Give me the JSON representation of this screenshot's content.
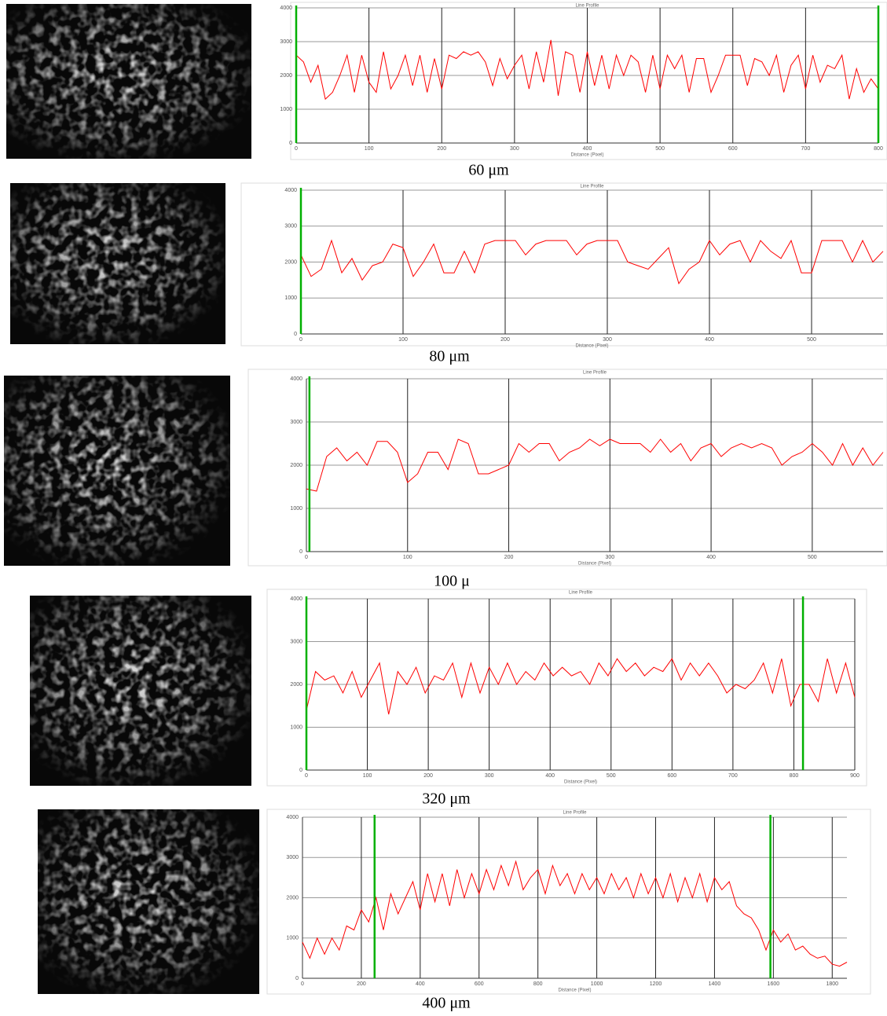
{
  "chart_data": [
    {
      "type": "line",
      "title": "Line Profile",
      "x_label": "Distance (Pixel)",
      "caption": "60 μm",
      "color": "#ff0000",
      "grid": true,
      "xlim": [
        0,
        800
      ],
      "xticks": [
        0,
        100,
        200,
        300,
        400,
        500,
        600,
        700,
        800
      ],
      "ylim": [
        0,
        4000
      ],
      "yticks": [
        0,
        1000,
        2000,
        3000,
        4000
      ],
      "markers": [
        0,
        800
      ],
      "marker_color": "#00b000",
      "x": [
        0,
        10,
        20,
        30,
        40,
        50,
        60,
        70,
        80,
        90,
        100,
        110,
        120,
        130,
        140,
        150,
        160,
        170,
        180,
        190,
        200,
        210,
        220,
        230,
        240,
        250,
        260,
        270,
        280,
        290,
        300,
        310,
        320,
        330,
        340,
        350,
        360,
        370,
        380,
        390,
        400,
        410,
        420,
        430,
        440,
        450,
        460,
        470,
        480,
        490,
        500,
        510,
        520,
        530,
        540,
        550,
        560,
        570,
        580,
        590,
        600,
        610,
        620,
        630,
        640,
        650,
        660,
        670,
        680,
        690,
        700,
        710,
        720,
        730,
        740,
        750,
        760,
        770,
        780,
        790,
        800
      ],
      "values": [
        2600,
        2400,
        1800,
        2300,
        1300,
        1500,
        2000,
        2600,
        1500,
        2600,
        1800,
        1500,
        2700,
        1600,
        2000,
        2600,
        1700,
        2600,
        1500,
        2500,
        1600,
        2600,
        2500,
        2700,
        2600,
        2700,
        2400,
        1700,
        2500,
        1900,
        2300,
        2600,
        1600,
        2700,
        1800,
        3050,
        1400,
        2700,
        2600,
        1500,
        2700,
        1700,
        2600,
        1600,
        2600,
        2000,
        2600,
        2400,
        1500,
        2600,
        1600,
        2600,
        2200,
        2600,
        1500,
        2500,
        2500,
        1500,
        2000,
        2600,
        2600,
        2600,
        1700,
        2500,
        2400,
        2000,
        2600,
        1500,
        2300,
        2600,
        1600,
        2600,
        1800,
        2300,
        2200,
        2600,
        1300,
        2200,
        1500,
        1900,
        1600
      ]
    },
    {
      "type": "line",
      "title": "Line Profile",
      "x_label": "Distance (Pixel)",
      "caption": "80 μm",
      "color": "#ff0000",
      "grid": true,
      "xlim": [
        0,
        570
      ],
      "xticks": [
        0,
        100,
        200,
        300,
        400,
        500
      ],
      "ylim": [
        0,
        4000
      ],
      "yticks": [
        0,
        1000,
        2000,
        3000,
        4000
      ],
      "markers": [
        0
      ],
      "marker_color": "#00b000",
      "x": [
        0,
        10,
        20,
        30,
        40,
        50,
        60,
        70,
        80,
        90,
        100,
        110,
        120,
        130,
        140,
        150,
        160,
        170,
        180,
        190,
        200,
        210,
        220,
        230,
        240,
        250,
        260,
        270,
        280,
        290,
        300,
        310,
        320,
        330,
        340,
        350,
        360,
        370,
        380,
        390,
        400,
        410,
        420,
        430,
        440,
        450,
        460,
        470,
        480,
        490,
        500,
        510,
        520,
        530,
        540,
        550,
        560,
        570
      ],
      "values": [
        2200,
        1600,
        1800,
        2600,
        1700,
        2100,
        1500,
        1900,
        2000,
        2500,
        2400,
        1600,
        2000,
        2500,
        1700,
        1700,
        2300,
        1700,
        2500,
        2600,
        2600,
        2600,
        2200,
        2500,
        2600,
        2600,
        2600,
        2200,
        2500,
        2600,
        2600,
        2600,
        2000,
        1900,
        1800,
        2100,
        2400,
        1400,
        1800,
        2000,
        2600,
        2200,
        2500,
        2600,
        2000,
        2600,
        2300,
        2100,
        2600,
        1700,
        1700,
        2600,
        2600,
        2600,
        2000,
        2600,
        2000,
        2300
      ]
    },
    {
      "type": "line",
      "title": "Line Profile",
      "x_label": "Distance (Pixel)",
      "caption": "100 μ",
      "color": "#ff0000",
      "grid": true,
      "xlim": [
        0,
        570
      ],
      "xticks": [
        0,
        100,
        200,
        300,
        400,
        500
      ],
      "ylim": [
        0,
        4000
      ],
      "yticks": [
        0,
        1000,
        2000,
        3000,
        4000
      ],
      "markers": [
        3
      ],
      "marker_color": "#00b000",
      "x": [
        0,
        10,
        20,
        30,
        40,
        50,
        60,
        70,
        80,
        90,
        100,
        110,
        120,
        130,
        140,
        150,
        160,
        170,
        180,
        190,
        200,
        210,
        220,
        230,
        240,
        250,
        260,
        270,
        280,
        290,
        300,
        310,
        320,
        330,
        340,
        350,
        360,
        370,
        380,
        390,
        400,
        410,
        420,
        430,
        440,
        450,
        460,
        470,
        480,
        490,
        500,
        510,
        520,
        530,
        540,
        550,
        560,
        570
      ],
      "values": [
        1450,
        1400,
        2200,
        2400,
        2100,
        2300,
        2000,
        2550,
        2550,
        2300,
        1600,
        1800,
        2300,
        2300,
        1900,
        2600,
        2500,
        1800,
        1800,
        1900,
        2000,
        2500,
        2300,
        2500,
        2500,
        2100,
        2300,
        2400,
        2600,
        2450,
        2600,
        2500,
        2500,
        2500,
        2300,
        2600,
        2300,
        2500,
        2100,
        2400,
        2500,
        2200,
        2400,
        2500,
        2400,
        2500,
        2400,
        2000,
        2200,
        2300,
        2500,
        2300,
        2000,
        2500,
        2000,
        2400,
        2000,
        2300
      ]
    },
    {
      "type": "line",
      "title": "Line Profile",
      "x_label": "Distance (Pixel)",
      "caption": "320 μm",
      "color": "#ff0000",
      "grid": true,
      "xlim": [
        0,
        900
      ],
      "xticks": [
        0,
        100,
        200,
        300,
        400,
        500,
        600,
        700,
        800,
        900
      ],
      "ylim": [
        0,
        4000
      ],
      "yticks": [
        0,
        1000,
        2000,
        3000,
        4000
      ],
      "markers": [
        0,
        815
      ],
      "marker_color": "#00b000",
      "x": [
        0,
        15,
        30,
        45,
        60,
        75,
        90,
        105,
        120,
        135,
        150,
        165,
        180,
        195,
        210,
        225,
        240,
        255,
        270,
        285,
        300,
        315,
        330,
        345,
        360,
        375,
        390,
        405,
        420,
        435,
        450,
        465,
        480,
        495,
        510,
        525,
        540,
        555,
        570,
        585,
        600,
        615,
        630,
        645,
        660,
        675,
        690,
        705,
        720,
        735,
        750,
        765,
        780,
        795,
        810,
        825,
        840,
        855,
        870,
        885,
        900
      ],
      "values": [
        1400,
        2300,
        2100,
        2200,
        1800,
        2300,
        1700,
        2100,
        2500,
        1300,
        2300,
        2000,
        2400,
        1800,
        2200,
        2100,
        2500,
        1700,
        2500,
        1800,
        2400,
        2000,
        2500,
        2000,
        2300,
        2100,
        2500,
        2200,
        2400,
        2200,
        2300,
        2000,
        2500,
        2200,
        2600,
        2300,
        2500,
        2200,
        2400,
        2300,
        2600,
        2100,
        2500,
        2200,
        2500,
        2200,
        1800,
        2000,
        1900,
        2100,
        2500,
        1800,
        2600,
        1500,
        2000,
        2000,
        1600,
        2600,
        1800,
        2500,
        1700
      ]
    },
    {
      "type": "line",
      "title": "Line Profile",
      "x_label": "Distance (Pixel)",
      "caption": "400 μm",
      "color": "#ff0000",
      "grid": true,
      "xlim": [
        0,
        1850
      ],
      "xticks": [
        0,
        200,
        400,
        600,
        800,
        1000,
        1200,
        1400,
        1600,
        1800
      ],
      "ylim": [
        0,
        4000
      ],
      "yticks": [
        0,
        1000,
        2000,
        3000,
        4000
      ],
      "markers": [
        245,
        1590
      ],
      "marker_color": "#00b000",
      "x": [
        0,
        25,
        50,
        75,
        100,
        125,
        150,
        175,
        200,
        225,
        250,
        275,
        300,
        325,
        350,
        375,
        400,
        425,
        450,
        475,
        500,
        525,
        550,
        575,
        600,
        625,
        650,
        675,
        700,
        725,
        750,
        775,
        800,
        825,
        850,
        875,
        900,
        925,
        950,
        975,
        1000,
        1025,
        1050,
        1075,
        1100,
        1125,
        1150,
        1175,
        1200,
        1225,
        1250,
        1275,
        1300,
        1325,
        1350,
        1375,
        1400,
        1425,
        1450,
        1475,
        1500,
        1525,
        1550,
        1575,
        1600,
        1625,
        1650,
        1675,
        1700,
        1725,
        1750,
        1775,
        1800,
        1825,
        1850
      ],
      "values": [
        900,
        500,
        1000,
        600,
        1000,
        700,
        1300,
        1200,
        1700,
        1400,
        2000,
        1200,
        2100,
        1600,
        2000,
        2400,
        1700,
        2600,
        1900,
        2600,
        1800,
        2700,
        2000,
        2600,
        2100,
        2700,
        2200,
        2800,
        2300,
        2900,
        2200,
        2500,
        2700,
        2100,
        2800,
        2300,
        2600,
        2100,
        2600,
        2200,
        2500,
        2100,
        2600,
        2200,
        2500,
        2000,
        2600,
        2100,
        2500,
        2000,
        2600,
        1900,
        2500,
        2000,
        2600,
        1900,
        2500,
        2200,
        2400,
        1800,
        1600,
        1500,
        1200,
        700,
        1200,
        900,
        1100,
        700,
        800,
        600,
        500,
        550,
        350,
        300,
        400
      ]
    }
  ]
}
